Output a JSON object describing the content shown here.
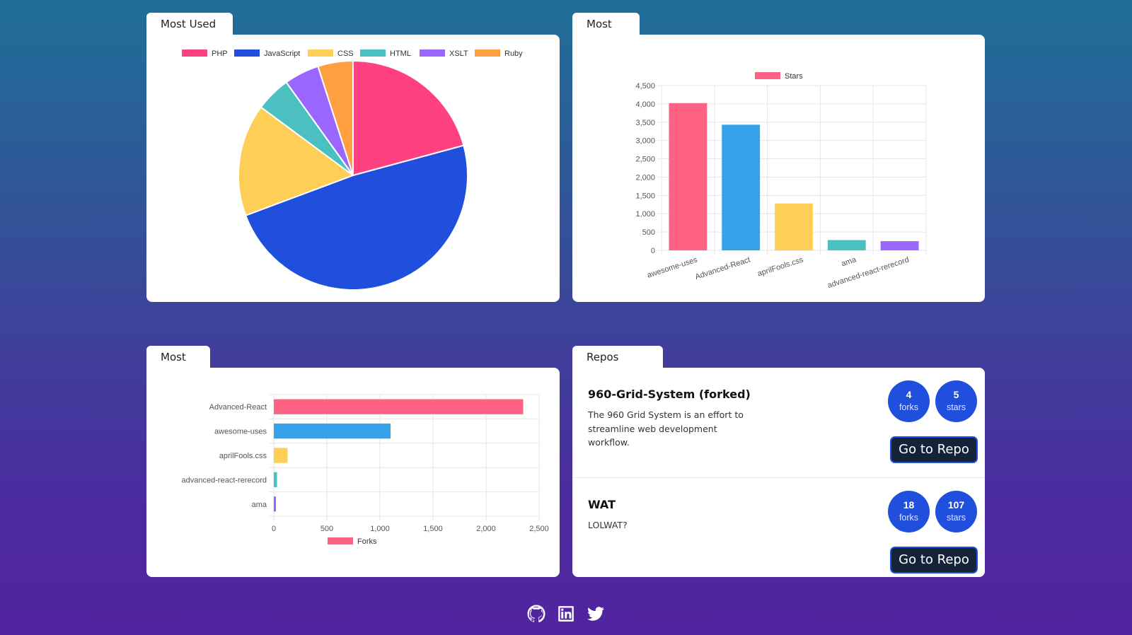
{
  "panels": {
    "languages": {
      "tab": "Most Used Languages"
    },
    "starred": {
      "tab": "Most Starred Repos"
    },
    "forked": {
      "tab": "Most Forked Repos"
    },
    "subscribing": {
      "tab": "Repos Subscribing"
    }
  },
  "chart_data": [
    {
      "type": "pie",
      "categories": [
        "PHP",
        "JavaScript",
        "CSS",
        "HTML",
        "XSLT",
        "Ruby"
      ],
      "values": [
        21,
        49,
        16,
        5,
        5,
        5
      ],
      "colors": [
        "#ff4182",
        "#1f4fdc",
        "#ffce56",
        "#4bc0c0",
        "#9966ff",
        "#ff9f40"
      ],
      "legend": "top"
    },
    {
      "type": "bar",
      "categories": [
        "awesome-uses",
        "Advanced-React",
        "aprilFools.css",
        "ama",
        "advanced-react-rerecord"
      ],
      "series": [
        {
          "name": "Stars",
          "values": [
            4020,
            3430,
            1280,
            280,
            250
          ]
        }
      ],
      "colors": [
        "#ff6384",
        "#36a2eb",
        "#ffce56",
        "#4bc0c0",
        "#9966ff"
      ],
      "ylim": [
        0,
        4500
      ],
      "yticks": [
        "0",
        "500",
        "1,000",
        "1,500",
        "2,000",
        "2,500",
        "3,000",
        "3,500",
        "4,000",
        "4,500"
      ],
      "legend": "top",
      "grid": true
    },
    {
      "type": "bar",
      "orientation": "horizontal",
      "categories": [
        "Advanced-React",
        "awesome-uses",
        "aprilFools.css",
        "advanced-react-rerecord",
        "ama"
      ],
      "series": [
        {
          "name": "Forks",
          "values": [
            2350,
            1100,
            130,
            30,
            15
          ]
        }
      ],
      "colors": [
        "#ff6384",
        "#36a2eb",
        "#ffce56",
        "#4bc0c0",
        "#9966ff"
      ],
      "xlim": [
        0,
        2500
      ],
      "xticks": [
        "0",
        "500",
        "1,000",
        "1,500",
        "2,000",
        "2,500"
      ],
      "legend": "bottom",
      "grid": true
    }
  ],
  "repos": [
    {
      "name": "960-Grid-System (forked)",
      "description": "The 960 Grid System is an effort to streamline web development workflow.",
      "forks": "4",
      "forks_label": "forks",
      "stars": "5",
      "stars_label": "stars",
      "button": "Go to Repo"
    },
    {
      "name": "WAT",
      "description": "LOLWAT?",
      "forks": "18",
      "forks_label": "forks",
      "stars": "107",
      "stars_label": "stars",
      "button": "Go to Repo"
    }
  ],
  "footer": {
    "icons": [
      "github-icon",
      "linkedin-icon",
      "twitter-icon"
    ]
  }
}
